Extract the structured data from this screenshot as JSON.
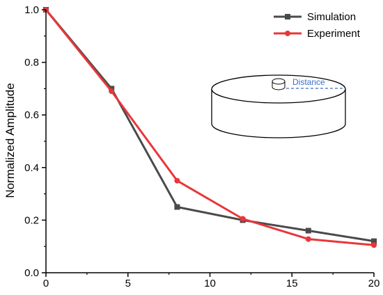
{
  "chart_data": {
    "type": "line",
    "title": "",
    "xlabel": "",
    "ylabel": "Normalized Amplitude",
    "xlim": [
      0,
      20
    ],
    "ylim": [
      0,
      1.0
    ],
    "x_ticks": [
      "0",
      "5",
      "10",
      "15",
      "20"
    ],
    "y_ticks": [
      "0.0",
      "0.2",
      "0.4",
      "0.6",
      "0.8",
      "1.0"
    ],
    "grid": false,
    "legend_position": "top-right",
    "x": [
      0,
      4,
      8,
      12,
      16,
      20
    ],
    "series": [
      {
        "name": "Simulation",
        "values": [
          1.0,
          0.7,
          0.25,
          0.2,
          0.16,
          0.12
        ],
        "color": "#4a4a4a",
        "marker": "square"
      },
      {
        "name": "Experiment",
        "values": [
          1.0,
          0.69,
          0.35,
          0.205,
          0.128,
          0.105
        ],
        "color": "#e8363a",
        "marker": "circle"
      }
    ],
    "inset": {
      "label": "Distance",
      "label_color": "#3a6fc4"
    }
  }
}
